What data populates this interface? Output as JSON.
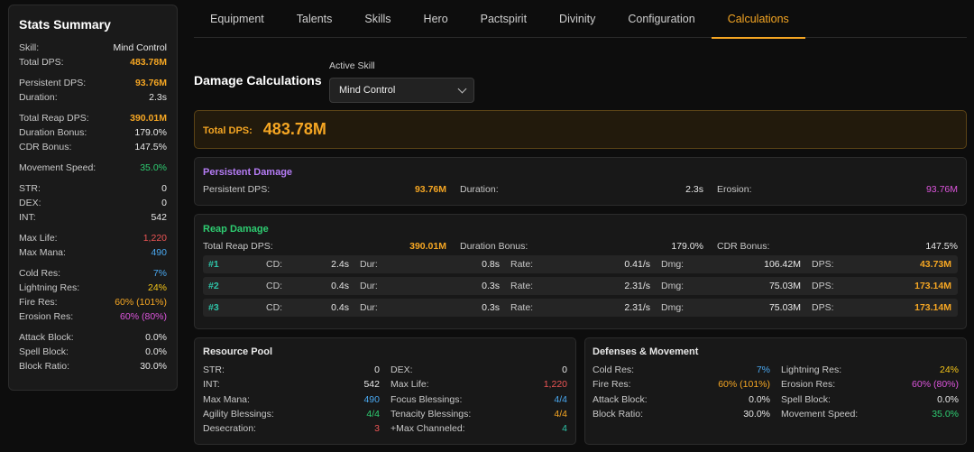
{
  "sidebar": {
    "title": "Stats Summary",
    "rows": [
      {
        "label": "Skill:",
        "value": "Mind Control",
        "color": "#e8e8e8",
        "bold": false
      },
      {
        "label": "Total DPS:",
        "value": "483.78M",
        "color": "#f5a623",
        "bold": true
      },
      {
        "gap": true
      },
      {
        "label": "Persistent DPS:",
        "value": "93.76M",
        "color": "#f5a623",
        "bold": true
      },
      {
        "label": "Duration:",
        "value": "2.3s",
        "color": "#e8e8e8",
        "bold": false
      },
      {
        "gap": true
      },
      {
        "label": "Total Reap DPS:",
        "value": "390.01M",
        "color": "#f5a623",
        "bold": true
      },
      {
        "label": "Duration Bonus:",
        "value": "179.0%",
        "color": "#e8e8e8",
        "bold": false
      },
      {
        "label": "CDR Bonus:",
        "value": "147.5%",
        "color": "#e8e8e8",
        "bold": false
      },
      {
        "gap": true
      },
      {
        "label": "Movement Speed:",
        "value": "35.0%",
        "color": "#2ecc71",
        "bold": false
      },
      {
        "gap": true
      },
      {
        "label": "STR:",
        "value": "0",
        "color": "#e8e8e8",
        "bold": false
      },
      {
        "label": "DEX:",
        "value": "0",
        "color": "#e8e8e8",
        "bold": false
      },
      {
        "label": "INT:",
        "value": "542",
        "color": "#e8e8e8",
        "bold": false
      },
      {
        "gap": true
      },
      {
        "label": "Max Life:",
        "value": "1,220",
        "color": "#ee5555",
        "bold": false
      },
      {
        "label": "Max Mana:",
        "value": "490",
        "color": "#4aa8f0",
        "bold": false
      },
      {
        "gap": true
      },
      {
        "label": "Cold Res:",
        "value": "7%",
        "color": "#4aa8f0",
        "bold": false
      },
      {
        "label": "Lightning Res:",
        "value": "24%",
        "color": "#f5c518",
        "bold": false
      },
      {
        "label": "Fire Res:",
        "value": "60% (101%)",
        "color": "#f5a623",
        "bold": false
      },
      {
        "label": "Erosion Res:",
        "value": "60% (80%)",
        "color": "#dd55dd",
        "bold": false
      },
      {
        "gap": true
      },
      {
        "label": "Attack Block:",
        "value": "0.0%",
        "color": "#e8e8e8",
        "bold": false
      },
      {
        "label": "Spell Block:",
        "value": "0.0%",
        "color": "#e8e8e8",
        "bold": false
      },
      {
        "label": "Block Ratio:",
        "value": "30.0%",
        "color": "#e8e8e8",
        "bold": false
      }
    ]
  },
  "tabs": [
    "Equipment",
    "Talents",
    "Skills",
    "Hero",
    "Pactspirit",
    "Divinity",
    "Configuration",
    "Calculations"
  ],
  "active_tab": "Calculations",
  "header": {
    "title": "Damage Calculations",
    "active_skill_label": "Active Skill",
    "active_skill_value": "Mind Control"
  },
  "total": {
    "label": "Total DPS:",
    "value": "483.78M"
  },
  "persistent": {
    "title": "Persistent Damage",
    "title_color": "#b57cf5",
    "items": [
      {
        "label": "Persistent DPS:",
        "value": "93.76M",
        "color": "#f5a623",
        "bold": true
      },
      {
        "label": "Duration:",
        "value": "2.3s",
        "color": "#e8e8e8",
        "bold": false
      },
      {
        "label": "Erosion:",
        "value": "93.76M",
        "color": "#dd55dd",
        "bold": false
      }
    ]
  },
  "reap": {
    "title": "Reap Damage",
    "title_color": "#2ecc71",
    "items": [
      {
        "label": "Total Reap DPS:",
        "value": "390.01M",
        "color": "#f5a623",
        "bold": true
      },
      {
        "label": "Duration Bonus:",
        "value": "179.0%",
        "color": "#e8e8e8",
        "bold": false
      },
      {
        "label": "CDR Bonus:",
        "value": "147.5%",
        "color": "#e8e8e8",
        "bold": false
      }
    ],
    "rows": [
      {
        "id": "#1",
        "cd_label": "CD:",
        "cd": "2.4s",
        "dur_label": "Dur:",
        "dur": "0.8s",
        "rate_label": "Rate:",
        "rate": "0.41/s",
        "dmg_label": "Dmg:",
        "dmg": "106.42M",
        "dps_label": "DPS:",
        "dps": "43.73M"
      },
      {
        "id": "#2",
        "cd_label": "CD:",
        "cd": "0.4s",
        "dur_label": "Dur:",
        "dur": "0.3s",
        "rate_label": "Rate:",
        "rate": "2.31/s",
        "dmg_label": "Dmg:",
        "dmg": "75.03M",
        "dps_label": "DPS:",
        "dps": "173.14M"
      },
      {
        "id": "#3",
        "cd_label": "CD:",
        "cd": "0.4s",
        "dur_label": "Dur:",
        "dur": "0.3s",
        "rate_label": "Rate:",
        "rate": "2.31/s",
        "dmg_label": "Dmg:",
        "dmg": "75.03M",
        "dps_label": "DPS:",
        "dps": "173.14M"
      }
    ]
  },
  "resource": {
    "title": "Resource Pool",
    "left": [
      {
        "label": "STR:",
        "value": "0",
        "color": "#e8e8e8"
      },
      {
        "label": "INT:",
        "value": "542",
        "color": "#e8e8e8"
      },
      {
        "label": "Max Mana:",
        "value": "490",
        "color": "#4aa8f0"
      },
      {
        "label": "Agility Blessings:",
        "value": "4/4",
        "color": "#2ecc71"
      },
      {
        "label": "Desecration:",
        "value": "3",
        "color": "#ee5555"
      }
    ],
    "right": [
      {
        "label": "DEX:",
        "value": "0",
        "color": "#e8e8e8"
      },
      {
        "label": "Max Life:",
        "value": "1,220",
        "color": "#ee5555"
      },
      {
        "label": "Focus Blessings:",
        "value": "4/4",
        "color": "#4aa8f0"
      },
      {
        "label": "Tenacity Blessings:",
        "value": "4/4",
        "color": "#f5a623"
      },
      {
        "label": "+Max Channeled:",
        "value": "4",
        "color": "#2ec4a8"
      }
    ]
  },
  "defense": {
    "title": "Defenses & Movement",
    "left": [
      {
        "label": "Cold Res:",
        "value": "7%",
        "color": "#4aa8f0"
      },
      {
        "label": "Fire Res:",
        "value": "60% (101%)",
        "color": "#f5a623"
      },
      {
        "label": "Attack Block:",
        "value": "0.0%",
        "color": "#e8e8e8"
      },
      {
        "label": "Block Ratio:",
        "value": "30.0%",
        "color": "#e8e8e8"
      }
    ],
    "right": [
      {
        "label": "Lightning Res:",
        "value": "24%",
        "color": "#f5c518"
      },
      {
        "label": "Erosion Res:",
        "value": "60% (80%)",
        "color": "#dd55dd"
      },
      {
        "label": "Spell Block:",
        "value": "0.0%",
        "color": "#e8e8e8"
      },
      {
        "label": "Movement Speed:",
        "value": "35.0%",
        "color": "#2ecc71"
      }
    ]
  }
}
